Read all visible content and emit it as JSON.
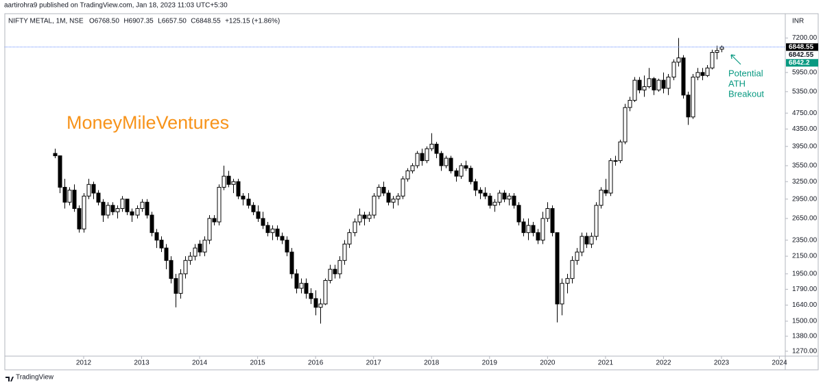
{
  "header": {
    "publisher": "aartirohra9 published on TradingView.com, Jan 18, 2023 11:03 UTC+5:30",
    "footer": "TradingView"
  },
  "chart_data": {
    "type": "candlestick",
    "symbol": "NIFTY METAL, 1M, NSE",
    "legend_values": [
      "O6768.50",
      "H6907.35",
      "L6657.50",
      "C6848.55",
      "+125.15 (+1.86%)"
    ],
    "watermark": "MoneyMileVentures",
    "annotation": [
      "Potential",
      "ATH",
      "Breakout"
    ],
    "y_axis_unit": "INR",
    "log_scale": true,
    "up_color": "#ffffff",
    "down_color": "#000000",
    "price_labels": [
      {
        "value": 6848.55,
        "color": "#000000"
      },
      {
        "value": 6842.55,
        "color": "#ffffff"
      },
      {
        "value": 6842.2,
        "color": "#089981"
      }
    ],
    "price_line_color": "#2962ff",
    "x": [
      2011.5,
      2011.583,
      2011.667,
      2011.75,
      2011.833,
      2011.917,
      2012,
      2012.083,
      2012.167,
      2012.25,
      2012.333,
      2012.417,
      2012.5,
      2012.583,
      2012.667,
      2012.75,
      2012.833,
      2012.917,
      2013,
      2013.083,
      2013.167,
      2013.25,
      2013.333,
      2013.417,
      2013.5,
      2013.583,
      2013.667,
      2013.75,
      2013.833,
      2013.917,
      2014,
      2014.083,
      2014.167,
      2014.25,
      2014.333,
      2014.417,
      2014.5,
      2014.583,
      2014.667,
      2014.75,
      2014.833,
      2014.917,
      2015,
      2015.083,
      2015.167,
      2015.25,
      2015.333,
      2015.417,
      2015.5,
      2015.583,
      2015.667,
      2015.75,
      2015.833,
      2015.917,
      2016,
      2016.083,
      2016.167,
      2016.25,
      2016.333,
      2016.417,
      2016.5,
      2016.583,
      2016.667,
      2016.75,
      2016.833,
      2016.917,
      2017,
      2017.083,
      2017.167,
      2017.25,
      2017.333,
      2017.417,
      2017.5,
      2017.583,
      2017.667,
      2017.75,
      2017.833,
      2017.917,
      2018,
      2018.083,
      2018.167,
      2018.25,
      2018.333,
      2018.417,
      2018.5,
      2018.583,
      2018.667,
      2018.75,
      2018.833,
      2018.917,
      2019,
      2019.083,
      2019.167,
      2019.25,
      2019.333,
      2019.417,
      2019.5,
      2019.583,
      2019.667,
      2019.75,
      2019.833,
      2019.917,
      2020,
      2020.083,
      2020.167,
      2020.25,
      2020.333,
      2020.417,
      2020.5,
      2020.583,
      2020.667,
      2020.75,
      2020.833,
      2020.917,
      2021,
      2021.083,
      2021.167,
      2021.25,
      2021.333,
      2021.417,
      2021.5,
      2021.583,
      2021.667,
      2021.75,
      2021.833,
      2021.917,
      2022,
      2022.083,
      2022.167,
      2022.25,
      2022.333,
      2022.417,
      2022.5,
      2022.583,
      2022.667,
      2022.75,
      2022.833,
      2022.917,
      2023
    ],
    "open": [
      3800,
      3750,
      3150,
      2900,
      3100,
      2800,
      2500,
      3000,
      3200,
      3050,
      2900,
      2700,
      2850,
      2750,
      2800,
      2950,
      2750,
      2700,
      2800,
      2900,
      2700,
      2450,
      2350,
      2250,
      2100,
      1900,
      1750,
      1950,
      2100,
      2150,
      2300,
      2200,
      2350,
      2650,
      2600,
      3150,
      3350,
      3200,
      3250,
      3000,
      2950,
      2850,
      2750,
      2650,
      2550,
      2450,
      2500,
      2400,
      2350,
      2200,
      1950,
      1800,
      1850,
      1750,
      1700,
      1620,
      1650,
      1880,
      2000,
      1950,
      2100,
      2300,
      2450,
      2600,
      2700,
      2650,
      2700,
      3000,
      3150,
      3050,
      2900,
      2950,
      3000,
      3300,
      3450,
      3550,
      3800,
      3650,
      3900,
      4000,
      3800,
      3550,
      3700,
      3450,
      3350,
      3550,
      3500,
      3250,
      3100,
      3050,
      3000,
      2850,
      2900,
      3050,
      2950,
      3000,
      2850,
      2600,
      2450,
      2550,
      2450,
      2350,
      2650,
      2800,
      2450,
      1650,
      1850,
      1900,
      2100,
      2200,
      2400,
      2300,
      2400,
      2850,
      3100,
      3050,
      3650,
      3650,
      4050,
      4900,
      5100,
      5700,
      5400,
      5500,
      5750,
      5400,
      5700,
      5450,
      5800,
      6300,
      6450,
      5250,
      4650,
      5800,
      5950,
      5850,
      6100,
      6650,
      6768.5
    ],
    "high": [
      3900,
      3750,
      3300,
      3150,
      3200,
      2850,
      3050,
      3300,
      3250,
      3100,
      2950,
      2900,
      2900,
      2850,
      3000,
      2950,
      2800,
      2850,
      2950,
      2950,
      2750,
      2500,
      2400,
      2300,
      2150,
      1950,
      2000,
      2150,
      2200,
      2300,
      2350,
      2400,
      2700,
      2700,
      3200,
      3550,
      3450,
      3300,
      3300,
      3050,
      3050,
      2900,
      2850,
      2750,
      2600,
      2550,
      2550,
      2450,
      2400,
      2250,
      2000,
      1900,
      1900,
      1800,
      1780,
      1700,
      1900,
      2050,
      2050,
      2150,
      2350,
      2500,
      2650,
      2800,
      2750,
      2750,
      3050,
      3200,
      3250,
      3100,
      3000,
      3050,
      3350,
      3500,
      3600,
      3850,
      3900,
      3950,
      4250,
      4050,
      3850,
      3750,
      3750,
      3500,
      3600,
      3650,
      3550,
      3300,
      3150,
      3150,
      3050,
      2950,
      3100,
      3100,
      3050,
      3050,
      2900,
      2650,
      2650,
      2600,
      2500,
      2750,
      2900,
      2850,
      2450,
      1900,
      1950,
      2150,
      2250,
      2450,
      2450,
      2450,
      2900,
      3150,
      3300,
      3700,
      3750,
      4100,
      5000,
      5200,
      5800,
      5800,
      5850,
      6100,
      5800,
      5750,
      5950,
      5900,
      6400,
      7200,
      6550,
      5350,
      5900,
      6100,
      6100,
      6200,
      6750,
      6900,
      6907.35
    ],
    "low": [
      3700,
      3050,
      2800,
      2850,
      2750,
      2450,
      2450,
      2950,
      2950,
      2850,
      2600,
      2650,
      2700,
      2650,
      2750,
      2700,
      2600,
      2650,
      2750,
      2650,
      2400,
      2250,
      2200,
      2000,
      1850,
      1620,
      1700,
      1900,
      2050,
      2100,
      2150,
      2150,
      2300,
      2550,
      2550,
      3100,
      3150,
      3050,
      2950,
      2850,
      2800,
      2700,
      2600,
      2500,
      2400,
      2350,
      2350,
      2300,
      2150,
      1900,
      1750,
      1750,
      1700,
      1650,
      1550,
      1480,
      1640,
      1850,
      1900,
      1900,
      2050,
      2250,
      2400,
      2550,
      2550,
      2600,
      2650,
      2950,
      3000,
      2850,
      2800,
      2850,
      2950,
      3250,
      3400,
      3500,
      3550,
      3600,
      3850,
      3700,
      3450,
      3500,
      3400,
      3250,
      3300,
      3450,
      3200,
      3000,
      2950,
      2950,
      2800,
      2750,
      2850,
      2900,
      2850,
      2800,
      2550,
      2400,
      2350,
      2400,
      2300,
      2300,
      2600,
      2400,
      1490,
      1550,
      1750,
      1850,
      2050,
      2150,
      2250,
      2250,
      2350,
      2800,
      3000,
      3000,
      3550,
      3600,
      4000,
      4800,
      5050,
      5300,
      5200,
      5450,
      5250,
      5350,
      5300,
      5250,
      5700,
      6150,
      5150,
      4450,
      4600,
      5700,
      5700,
      5800,
      6050,
      6400,
      6657.5
    ],
    "close": [
      3750,
      3150,
      2900,
      3100,
      2800,
      2500,
      3000,
      3200,
      3050,
      2900,
      2700,
      2850,
      2750,
      2800,
      2950,
      2750,
      2700,
      2800,
      2900,
      2700,
      2450,
      2350,
      2250,
      2100,
      1900,
      1750,
      1950,
      2100,
      2150,
      2250,
      2200,
      2350,
      2650,
      2600,
      3150,
      3350,
      3200,
      3250,
      3000,
      2950,
      2850,
      2750,
      2650,
      2550,
      2450,
      2500,
      2400,
      2350,
      2200,
      1950,
      1800,
      1850,
      1750,
      1700,
      1620,
      1650,
      1880,
      2000,
      1950,
      2100,
      2300,
      2450,
      2600,
      2700,
      2650,
      2700,
      3000,
      3150,
      3050,
      2900,
      2950,
      3000,
      3300,
      3450,
      3550,
      3800,
      3650,
      3900,
      4000,
      3800,
      3550,
      3700,
      3450,
      3350,
      3550,
      3500,
      3250,
      3100,
      3050,
      3000,
      2850,
      2900,
      3050,
      2950,
      3000,
      2850,
      2600,
      2450,
      2550,
      2450,
      2350,
      2650,
      2800,
      2450,
      1650,
      1850,
      1900,
      2100,
      2200,
      2400,
      2300,
      2400,
      2850,
      3100,
      3050,
      3650,
      3650,
      4050,
      4900,
      5100,
      5700,
      5400,
      5500,
      5750,
      5400,
      5700,
      5450,
      5800,
      6300,
      6450,
      5250,
      4650,
      5800,
      5950,
      5850,
      6100,
      6650,
      6720,
      6848.55
    ],
    "xlim": [
      2010.64,
      2024.1
    ],
    "xticks": [
      2012,
      2013,
      2014,
      2015,
      2016,
      2017,
      2018,
      2019,
      2020,
      2021,
      2022,
      2023,
      2024
    ],
    "ylim": [
      1236,
      8240
    ],
    "yticks": [
      {
        "value": 1270,
        "label": "1270.00"
      },
      {
        "value": 1380,
        "label": "1380.00"
      },
      {
        "value": 1500,
        "label": "1500.00"
      },
      {
        "value": 1640,
        "label": "1640.00"
      },
      {
        "value": 1790,
        "label": "1790.00"
      },
      {
        "value": 1950,
        "label": "1950.00"
      },
      {
        "value": 2150,
        "label": "2150.00"
      },
      {
        "value": 2350,
        "label": "2350.00"
      },
      {
        "value": 2650,
        "label": "2650.00"
      },
      {
        "value": 2950,
        "label": "2950.00"
      },
      {
        "value": 3250,
        "label": "3250.00"
      },
      {
        "value": 3550,
        "label": "3550.00"
      },
      {
        "value": 3950,
        "label": "3950.00"
      },
      {
        "value": 4350,
        "label": "4350.00"
      },
      {
        "value": 4750,
        "label": "4750.00"
      },
      {
        "value": 5350,
        "label": "5350.00"
      },
      {
        "value": 5950,
        "label": "5950.00"
      },
      {
        "value": 7200,
        "label": "7200.00"
      }
    ]
  }
}
